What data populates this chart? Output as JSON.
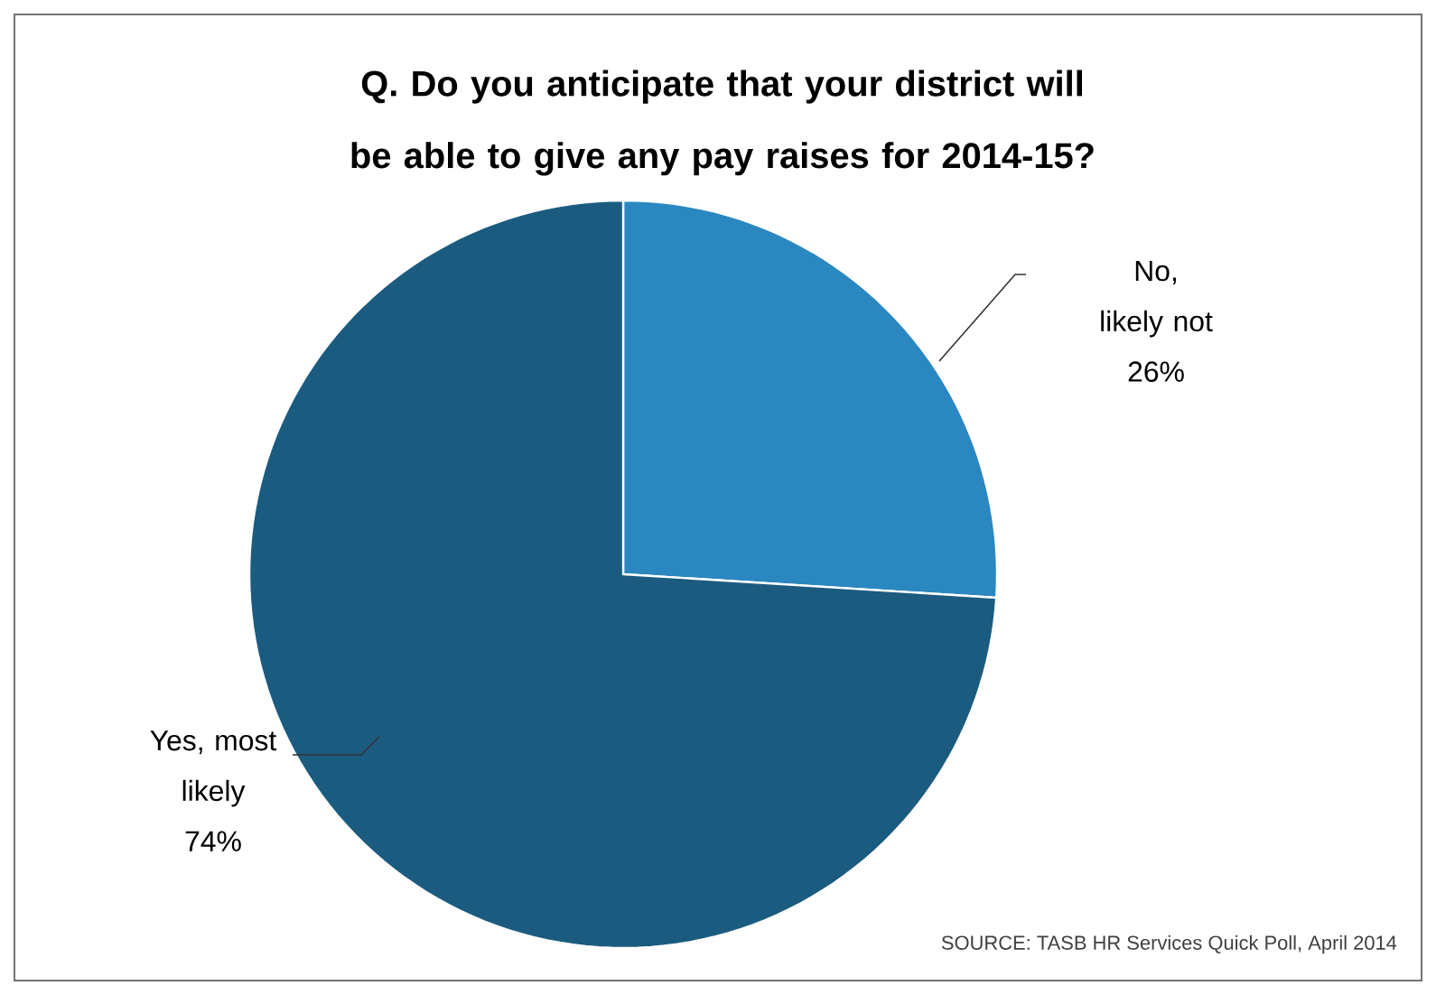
{
  "chart_data": {
    "type": "pie",
    "title": "Q. Do you anticipate that your district will be able to give any pay raises for 2014-15?",
    "categories": [
      "No, likely not",
      "Yes, most likely"
    ],
    "values": [
      26,
      74
    ],
    "value_labels": [
      "26%",
      "74%"
    ],
    "colors": [
      "#2b87c0",
      "#1b5b80"
    ],
    "annotations": [
      "SOURCE: TASB HR Services Quick Poll, April 2014"
    ]
  }
}
